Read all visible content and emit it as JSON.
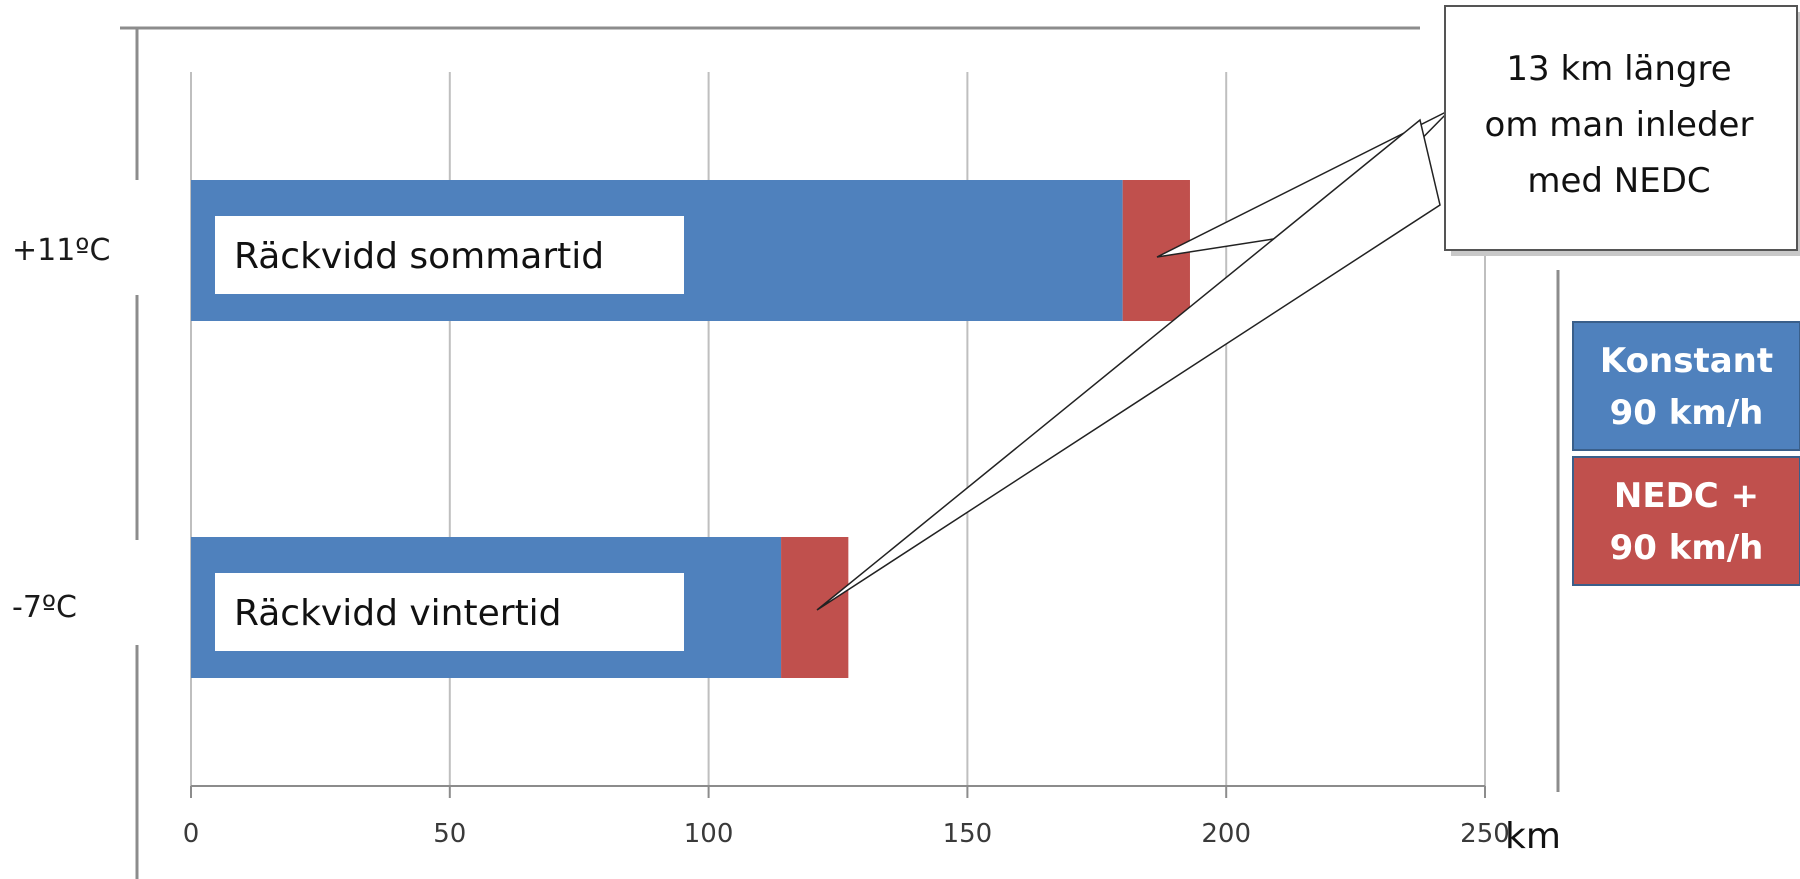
{
  "chart_data": {
    "type": "bar",
    "orientation": "horizontal",
    "stacked": true,
    "categories": [
      "+11ºC",
      "-7ºC"
    ],
    "bar_labels": [
      "Räckvidd sommartid",
      "Räckvidd vintertid"
    ],
    "series": [
      {
        "name": "Konstant 90 km/h",
        "legend_lines": [
          "Konstant",
          "90 km/h"
        ],
        "color": "#4f81bd",
        "values": [
          180,
          114
        ]
      },
      {
        "name": "NEDC + 90 km/h",
        "legend_lines": [
          "NEDC +",
          "90 km/h"
        ],
        "color": "#c0504d",
        "values": [
          13,
          13
        ]
      }
    ],
    "xlim": [
      0,
      250
    ],
    "xticks": [
      0,
      50,
      100,
      150,
      200,
      250
    ],
    "xlabel": "km",
    "grid": true,
    "legend_position": "right",
    "annotation": {
      "lines": [
        "13 km längre",
        "om man inleder",
        "med NEDC"
      ]
    }
  }
}
